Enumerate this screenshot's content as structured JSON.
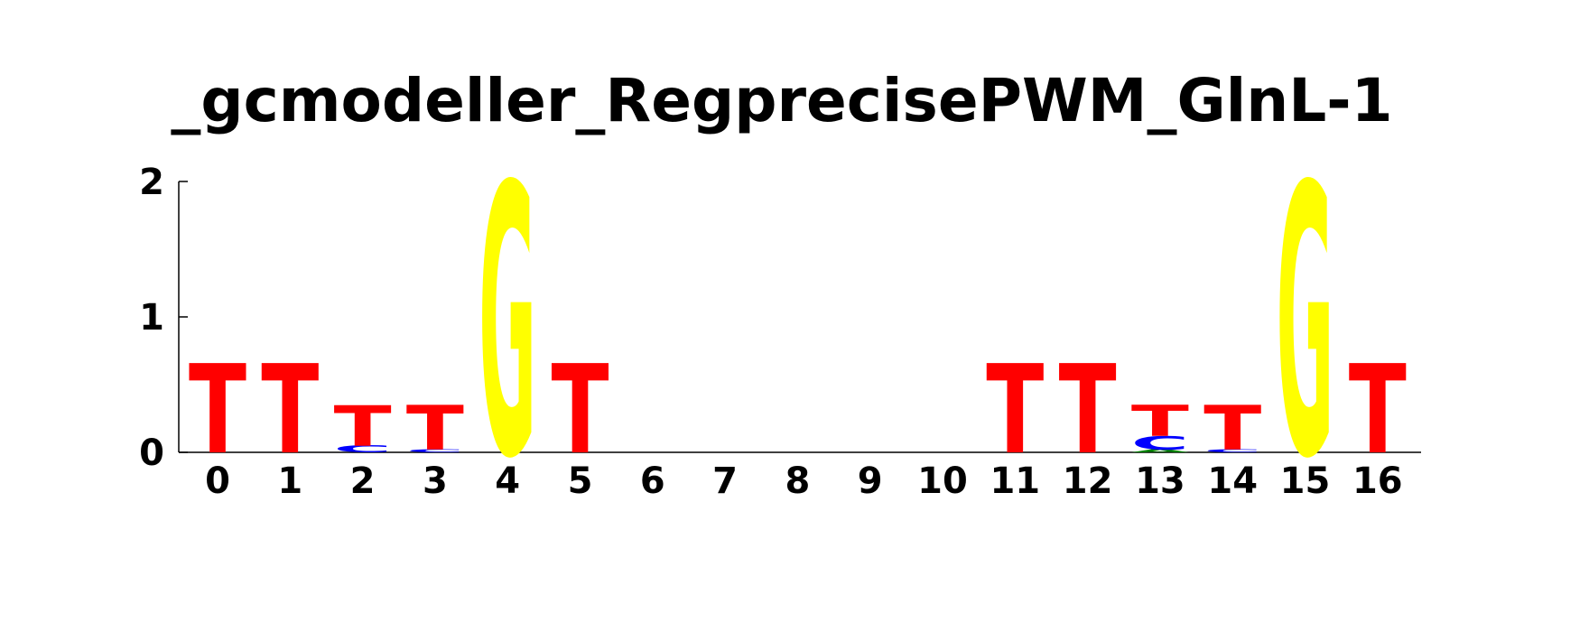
{
  "chart_data": {
    "type": "sequence-logo",
    "title": "_gcmodeller_RegprecisePWM_GlnL-1",
    "ylim": [
      0,
      2
    ],
    "yticks": [
      "0",
      "1",
      "2"
    ],
    "xticks": [
      "0",
      "1",
      "2",
      "3",
      "4",
      "5",
      "6",
      "7",
      "8",
      "9",
      "10",
      "11",
      "12",
      "13",
      "14",
      "15",
      "16"
    ],
    "colors": {
      "A": "#008000",
      "C": "#0000ff",
      "G": "#ffff00",
      "T": "#ff0000"
    },
    "positions": [
      {
        "pos": "0",
        "letters": [
          {
            "base": "T",
            "height": 0.66
          }
        ]
      },
      {
        "pos": "1",
        "letters": [
          {
            "base": "T",
            "height": 0.66
          }
        ]
      },
      {
        "pos": "2",
        "letters": [
          {
            "base": "C",
            "height": 0.05
          },
          {
            "base": "T",
            "height": 0.3
          }
        ]
      },
      {
        "pos": "3",
        "letters": [
          {
            "base": "C",
            "height": 0.02
          },
          {
            "base": "T",
            "height": 0.33
          }
        ]
      },
      {
        "pos": "4",
        "letters": [
          {
            "base": "G",
            "height": 2.0
          }
        ]
      },
      {
        "pos": "5",
        "letters": [
          {
            "base": "T",
            "height": 0.66
          }
        ]
      },
      {
        "pos": "6",
        "letters": []
      },
      {
        "pos": "7",
        "letters": []
      },
      {
        "pos": "8",
        "letters": []
      },
      {
        "pos": "9",
        "letters": []
      },
      {
        "pos": "10",
        "letters": []
      },
      {
        "pos": "11",
        "letters": [
          {
            "base": "T",
            "height": 0.66
          }
        ]
      },
      {
        "pos": "12",
        "letters": [
          {
            "base": "T",
            "height": 0.66
          }
        ]
      },
      {
        "pos": "13",
        "letters": [
          {
            "base": "A",
            "height": 0.02
          },
          {
            "base": "C",
            "height": 0.1
          },
          {
            "base": "T",
            "height": 0.23
          }
        ]
      },
      {
        "pos": "14",
        "letters": [
          {
            "base": "C",
            "height": 0.02
          },
          {
            "base": "T",
            "height": 0.33
          }
        ]
      },
      {
        "pos": "15",
        "letters": [
          {
            "base": "G",
            "height": 2.0
          }
        ]
      },
      {
        "pos": "16",
        "letters": [
          {
            "base": "T",
            "height": 0.66
          }
        ]
      }
    ]
  }
}
